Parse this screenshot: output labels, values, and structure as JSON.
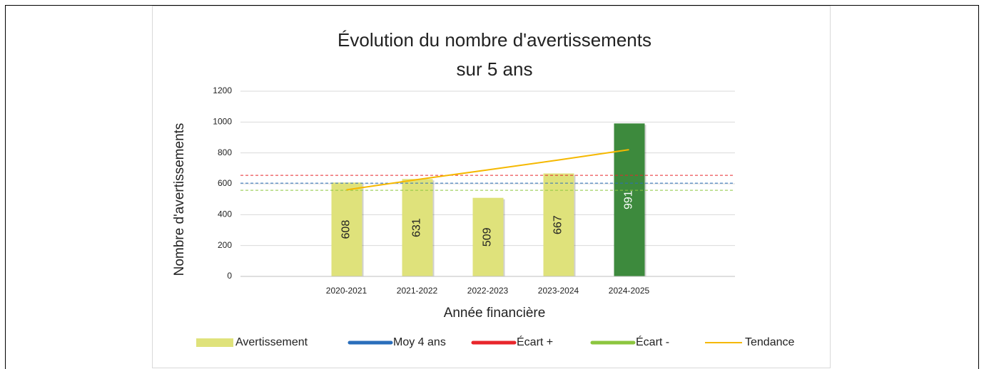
{
  "chart_data": {
    "type": "bar",
    "title": [
      "Évolution du nombre  d'avertissements",
      "sur 5 ans"
    ],
    "x_label": "Année financière",
    "y_label": "Nombre d'avertissements",
    "categories": [
      null,
      "2020-2021",
      "2021-2022",
      "2022-2023",
      "2023-2024",
      "2024-2025",
      null
    ],
    "series": [
      {
        "name": "Avertissement",
        "color": "#dfe27b",
        "colors": [
          null,
          "#dfe27b",
          "#dfe27b",
          "#dfe27b",
          "#dfe27b",
          "#3d8a3d",
          null
        ],
        "label_colors": [
          null,
          "#222222",
          "#222222",
          "#222222",
          "#222222",
          "#ffffff",
          null
        ],
        "values": [
          null,
          608,
          631,
          509,
          667,
          991,
          null
        ]
      },
      {
        "name": "Tendance",
        "type": "line",
        "color": "#f5b800",
        "values": [
          null,
          561,
          627,
          690,
          754,
          821,
          null
        ]
      }
    ],
    "reference_lines": [
      {
        "name": "Moy 4 ans",
        "color": "#2a6ebb",
        "value": 604
      },
      {
        "name": "Écart +",
        "color": "#e8262b",
        "value": 655
      },
      {
        "name": "Écart -",
        "color": "#8cc63f",
        "value": 558
      }
    ],
    "ylim": [
      0,
      1200
    ],
    "yticks": [
      0,
      200,
      400,
      600,
      800,
      1000,
      1200
    ],
    "grid": true,
    "legend": "bottom"
  }
}
